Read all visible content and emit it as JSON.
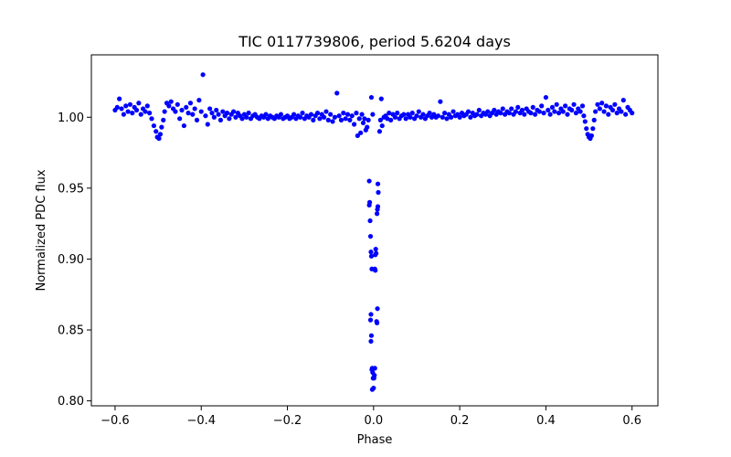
{
  "chart_data": {
    "type": "scatter",
    "title": "TIC 0117739806, period 5.6204 days",
    "xlabel": "Phase",
    "ylabel": "Normalized PDC flux",
    "xlim": [
      -0.655,
      0.66
    ],
    "ylim": [
      0.7965,
      1.044
    ],
    "x_ticks": [
      -0.6,
      -0.4,
      -0.2,
      0.0,
      0.2,
      0.4,
      0.6
    ],
    "x_tick_labels": [
      "−0.6",
      "−0.4",
      "−0.2",
      "0.0",
      "0.2",
      "0.4",
      "0.6"
    ],
    "y_ticks": [
      0.8,
      0.85,
      0.9,
      0.95,
      1.0
    ],
    "y_tick_labels": [
      "0.80",
      "0.85",
      "0.90",
      "0.95",
      "1.00"
    ],
    "grid": false,
    "marker_color": "#0000ff",
    "series": [
      {
        "color": "#0000ff",
        "points": [
          [
            -0.6,
            1.005
          ],
          [
            -0.595,
            1.007
          ],
          [
            -0.59,
            1.013
          ],
          [
            -0.585,
            1.006
          ],
          [
            -0.58,
            1.002
          ],
          [
            -0.575,
            1.008
          ],
          [
            -0.57,
            1.004
          ],
          [
            -0.565,
            1.009
          ],
          [
            -0.56,
            1.003
          ],
          [
            -0.555,
            1.007
          ],
          [
            -0.55,
            1.005
          ],
          [
            -0.545,
            1.01
          ],
          [
            -0.54,
            1.002
          ],
          [
            -0.535,
            1.006
          ],
          [
            -0.53,
            1.004
          ],
          [
            -0.525,
            1.008
          ],
          [
            -0.52,
            1.003
          ],
          [
            -0.515,
            0.999
          ],
          [
            -0.51,
            0.994
          ],
          [
            -0.505,
            0.99
          ],
          [
            -0.502,
            0.986
          ],
          [
            -0.498,
            0.985
          ],
          [
            -0.495,
            0.988
          ],
          [
            -0.492,
            0.993
          ],
          [
            -0.488,
            0.998
          ],
          [
            -0.485,
            1.004
          ],
          [
            -0.48,
            1.01
          ],
          [
            -0.475,
            1.008
          ],
          [
            -0.47,
            1.011
          ],
          [
            -0.465,
            1.006
          ],
          [
            -0.46,
            1.004
          ],
          [
            -0.455,
            1.009
          ],
          [
            -0.45,
            0.999
          ],
          [
            -0.445,
            1.005
          ],
          [
            -0.44,
            0.994
          ],
          [
            -0.435,
            1.007
          ],
          [
            -0.43,
            1.003
          ],
          [
            -0.425,
            1.01
          ],
          [
            -0.42,
            1.002
          ],
          [
            -0.415,
            1.006
          ],
          [
            -0.41,
            0.998
          ],
          [
            -0.405,
            1.012
          ],
          [
            -0.4,
            1.004
          ],
          [
            -0.396,
            1.03
          ],
          [
            -0.39,
            1.001
          ],
          [
            -0.385,
            0.995
          ],
          [
            -0.38,
            1.006
          ],
          [
            -0.375,
            1.003
          ],
          [
            -0.37,
            1.0
          ],
          [
            -0.365,
            1.005
          ],
          [
            -0.36,
            1.002
          ],
          [
            -0.355,
            0.998
          ],
          [
            -0.35,
            1.004
          ],
          [
            -0.345,
            1.001
          ],
          [
            -0.34,
            1.003
          ],
          [
            -0.335,
            0.999
          ],
          [
            -0.33,
            1.002
          ],
          [
            -0.325,
            1.004
          ],
          [
            -0.32,
            1.0
          ],
          [
            -0.315,
            1.003
          ],
          [
            -0.31,
            1.001
          ],
          [
            -0.305,
            0.999
          ],
          [
            -0.3,
            1.002
          ],
          [
            -0.295,
            1.0
          ],
          [
            -0.29,
            1.003
          ],
          [
            -0.285,
            0.999
          ],
          [
            -0.28,
            1.001
          ],
          [
            -0.275,
            1.002
          ],
          [
            -0.27,
            1.0
          ],
          [
            -0.265,
            0.999
          ],
          [
            -0.26,
            1.001
          ],
          [
            -0.255,
            1.0
          ],
          [
            -0.25,
            1.002
          ],
          [
            -0.245,
            0.999
          ],
          [
            -0.24,
            1.001
          ],
          [
            -0.235,
            1.0
          ],
          [
            -0.23,
            0.999
          ],
          [
            -0.225,
            1.001
          ],
          [
            -0.22,
            1.0
          ],
          [
            -0.215,
            1.002
          ],
          [
            -0.21,
            0.999
          ],
          [
            -0.205,
            1.0
          ],
          [
            -0.2,
            1.001
          ],
          [
            -0.195,
            0.999
          ],
          [
            -0.19,
            1.0
          ],
          [
            -0.185,
            1.002
          ],
          [
            -0.18,
            0.999
          ],
          [
            -0.175,
            1.001
          ],
          [
            -0.17,
            1.0
          ],
          [
            -0.165,
            1.003
          ],
          [
            -0.16,
            0.999
          ],
          [
            -0.155,
            1.001
          ],
          [
            -0.15,
            1.0
          ],
          [
            -0.145,
            1.002
          ],
          [
            -0.14,
            0.998
          ],
          [
            -0.135,
            1.001
          ],
          [
            -0.13,
            1.003
          ],
          [
            -0.125,
            0.999
          ],
          [
            -0.12,
            1.002
          ],
          [
            -0.115,
            1.0
          ],
          [
            -0.11,
            1.004
          ],
          [
            -0.105,
            0.998
          ],
          [
            -0.1,
            1.002
          ],
          [
            -0.095,
            0.997
          ],
          [
            -0.09,
            1.0
          ],
          [
            -0.085,
            1.017
          ],
          [
            -0.08,
            1.001
          ],
          [
            -0.075,
            0.998
          ],
          [
            -0.07,
            1.003
          ],
          [
            -0.065,
            0.999
          ],
          [
            -0.06,
            1.002
          ],
          [
            -0.055,
            0.998
          ],
          [
            -0.05,
            1.001
          ],
          [
            -0.045,
            0.995
          ],
          [
            -0.04,
            1.003
          ],
          [
            -0.037,
            0.987
          ],
          [
            -0.033,
            0.999
          ],
          [
            -0.03,
            0.989
          ],
          [
            -0.027,
            1.002
          ],
          [
            -0.024,
            0.996
          ],
          [
            -0.021,
            0.999
          ],
          [
            -0.018,
            0.991
          ],
          [
            -0.015,
            0.993
          ],
          [
            -0.012,
            0.998
          ],
          [
            -0.01,
            0.955
          ],
          [
            -0.009,
            0.94
          ],
          [
            -0.01,
            0.938
          ],
          [
            -0.008,
            0.927
          ],
          [
            -0.007,
            0.916
          ],
          [
            -0.006,
            0.905
          ],
          [
            -0.005,
            0.902
          ],
          [
            -0.004,
            0.893
          ],
          [
            -0.006,
            0.861
          ],
          [
            -0.007,
            0.857
          ],
          [
            -0.005,
            0.846
          ],
          [
            -0.006,
            0.842
          ],
          [
            -0.003,
            0.823
          ],
          [
            -0.004,
            0.822
          ],
          [
            -0.002,
            0.82
          ],
          [
            -0.001,
            0.816
          ],
          [
            -0.003,
            0.808
          ],
          [
            -0.005,
            1.014
          ],
          [
            -0.002,
            1.002
          ],
          [
            0.0,
            0.809
          ],
          [
            0.001,
            0.816
          ],
          [
            0.002,
            0.818
          ],
          [
            0.003,
            0.823
          ],
          [
            0.004,
            0.892
          ],
          [
            0.003,
            0.893
          ],
          [
            0.004,
            0.903
          ],
          [
            0.005,
            0.907
          ],
          [
            0.006,
            0.904
          ],
          [
            0.007,
            0.856
          ],
          [
            0.008,
            0.855
          ],
          [
            0.009,
            0.865
          ],
          [
            0.008,
            0.932
          ],
          [
            0.009,
            0.935
          ],
          [
            0.01,
            0.937
          ],
          [
            0.011,
            0.947
          ],
          [
            0.01,
            0.953
          ],
          [
            0.014,
            0.99
          ],
          [
            0.016,
            0.998
          ],
          [
            0.018,
            1.013
          ],
          [
            0.02,
            0.994
          ],
          [
            0.024,
            1.0
          ],
          [
            0.028,
            1.001
          ],
          [
            0.032,
            0.999
          ],
          [
            0.036,
            1.003
          ],
          [
            0.04,
            0.998
          ],
          [
            0.045,
            1.002
          ],
          [
            0.05,
            1.0
          ],
          [
            0.055,
            1.003
          ],
          [
            0.06,
            0.999
          ],
          [
            0.065,
            1.001
          ],
          [
            0.07,
            1.002
          ],
          [
            0.075,
            0.999
          ],
          [
            0.08,
            1.002
          ],
          [
            0.085,
            1.0
          ],
          [
            0.09,
            1.003
          ],
          [
            0.095,
            0.999
          ],
          [
            0.1,
            1.001
          ],
          [
            0.105,
            1.004
          ],
          [
            0.11,
            1.0
          ],
          [
            0.115,
            1.002
          ],
          [
            0.12,
            0.999
          ],
          [
            0.125,
            1.001
          ],
          [
            0.13,
            1.003
          ],
          [
            0.135,
            1.0
          ],
          [
            0.14,
            1.002
          ],
          [
            0.145,
            1.0
          ],
          [
            0.15,
            1.001
          ],
          [
            0.155,
            1.011
          ],
          [
            0.16,
            1.0
          ],
          [
            0.165,
            1.003
          ],
          [
            0.17,
            0.999
          ],
          [
            0.175,
            1.002
          ],
          [
            0.18,
            1.0
          ],
          [
            0.185,
            1.004
          ],
          [
            0.19,
            1.001
          ],
          [
            0.195,
            1.002
          ],
          [
            0.2,
            1.0
          ],
          [
            0.205,
            1.003
          ],
          [
            0.21,
            1.001
          ],
          [
            0.215,
            1.002
          ],
          [
            0.22,
            1.004
          ],
          [
            0.225,
            1.0
          ],
          [
            0.23,
            1.003
          ],
          [
            0.235,
            1.001
          ],
          [
            0.24,
            1.002
          ],
          [
            0.245,
            1.005
          ],
          [
            0.25,
            1.001
          ],
          [
            0.255,
            1.003
          ],
          [
            0.26,
            1.002
          ],
          [
            0.265,
            1.004
          ],
          [
            0.27,
            1.001
          ],
          [
            0.275,
            1.003
          ],
          [
            0.28,
            1.005
          ],
          [
            0.285,
            1.002
          ],
          [
            0.29,
            1.004
          ],
          [
            0.295,
            1.003
          ],
          [
            0.3,
            1.006
          ],
          [
            0.305,
            1.002
          ],
          [
            0.31,
            1.004
          ],
          [
            0.315,
            1.003
          ],
          [
            0.32,
            1.006
          ],
          [
            0.325,
            1.002
          ],
          [
            0.33,
            1.004
          ],
          [
            0.335,
            1.007
          ],
          [
            0.34,
            1.003
          ],
          [
            0.345,
            1.005
          ],
          [
            0.35,
            1.002
          ],
          [
            0.355,
            1.006
          ],
          [
            0.36,
            1.004
          ],
          [
            0.365,
            1.003
          ],
          [
            0.37,
            1.007
          ],
          [
            0.375,
            1.002
          ],
          [
            0.38,
            1.005
          ],
          [
            0.385,
            1.004
          ],
          [
            0.39,
            1.008
          ],
          [
            0.395,
            1.003
          ],
          [
            0.4,
            1.014
          ],
          [
            0.405,
            1.005
          ],
          [
            0.41,
            1.002
          ],
          [
            0.415,
            1.007
          ],
          [
            0.42,
            1.004
          ],
          [
            0.425,
            1.009
          ],
          [
            0.43,
            1.003
          ],
          [
            0.435,
            1.006
          ],
          [
            0.44,
            1.004
          ],
          [
            0.445,
            1.008
          ],
          [
            0.45,
            1.002
          ],
          [
            0.455,
            1.006
          ],
          [
            0.46,
            1.005
          ],
          [
            0.465,
            1.009
          ],
          [
            0.47,
            1.003
          ],
          [
            0.475,
            1.006
          ],
          [
            0.48,
            1.004
          ],
          [
            0.485,
            1.008
          ],
          [
            0.488,
            1.001
          ],
          [
            0.491,
            0.997
          ],
          [
            0.494,
            0.992
          ],
          [
            0.497,
            0.988
          ],
          [
            0.5,
            0.986
          ],
          [
            0.503,
            0.985
          ],
          [
            0.506,
            0.987
          ],
          [
            0.509,
            0.992
          ],
          [
            0.512,
            0.998
          ],
          [
            0.515,
            1.004
          ],
          [
            0.52,
            1.009
          ],
          [
            0.525,
            1.006
          ],
          [
            0.53,
            1.01
          ],
          [
            0.535,
            1.004
          ],
          [
            0.54,
            1.008
          ],
          [
            0.545,
            1.002
          ],
          [
            0.55,
            1.007
          ],
          [
            0.555,
            1.005
          ],
          [
            0.56,
            1.009
          ],
          [
            0.565,
            1.003
          ],
          [
            0.57,
            1.006
          ],
          [
            0.575,
            1.004
          ],
          [
            0.58,
            1.012
          ],
          [
            0.585,
            1.002
          ],
          [
            0.59,
            1.007
          ],
          [
            0.595,
            1.005
          ],
          [
            0.6,
            1.003
          ]
        ]
      }
    ]
  }
}
